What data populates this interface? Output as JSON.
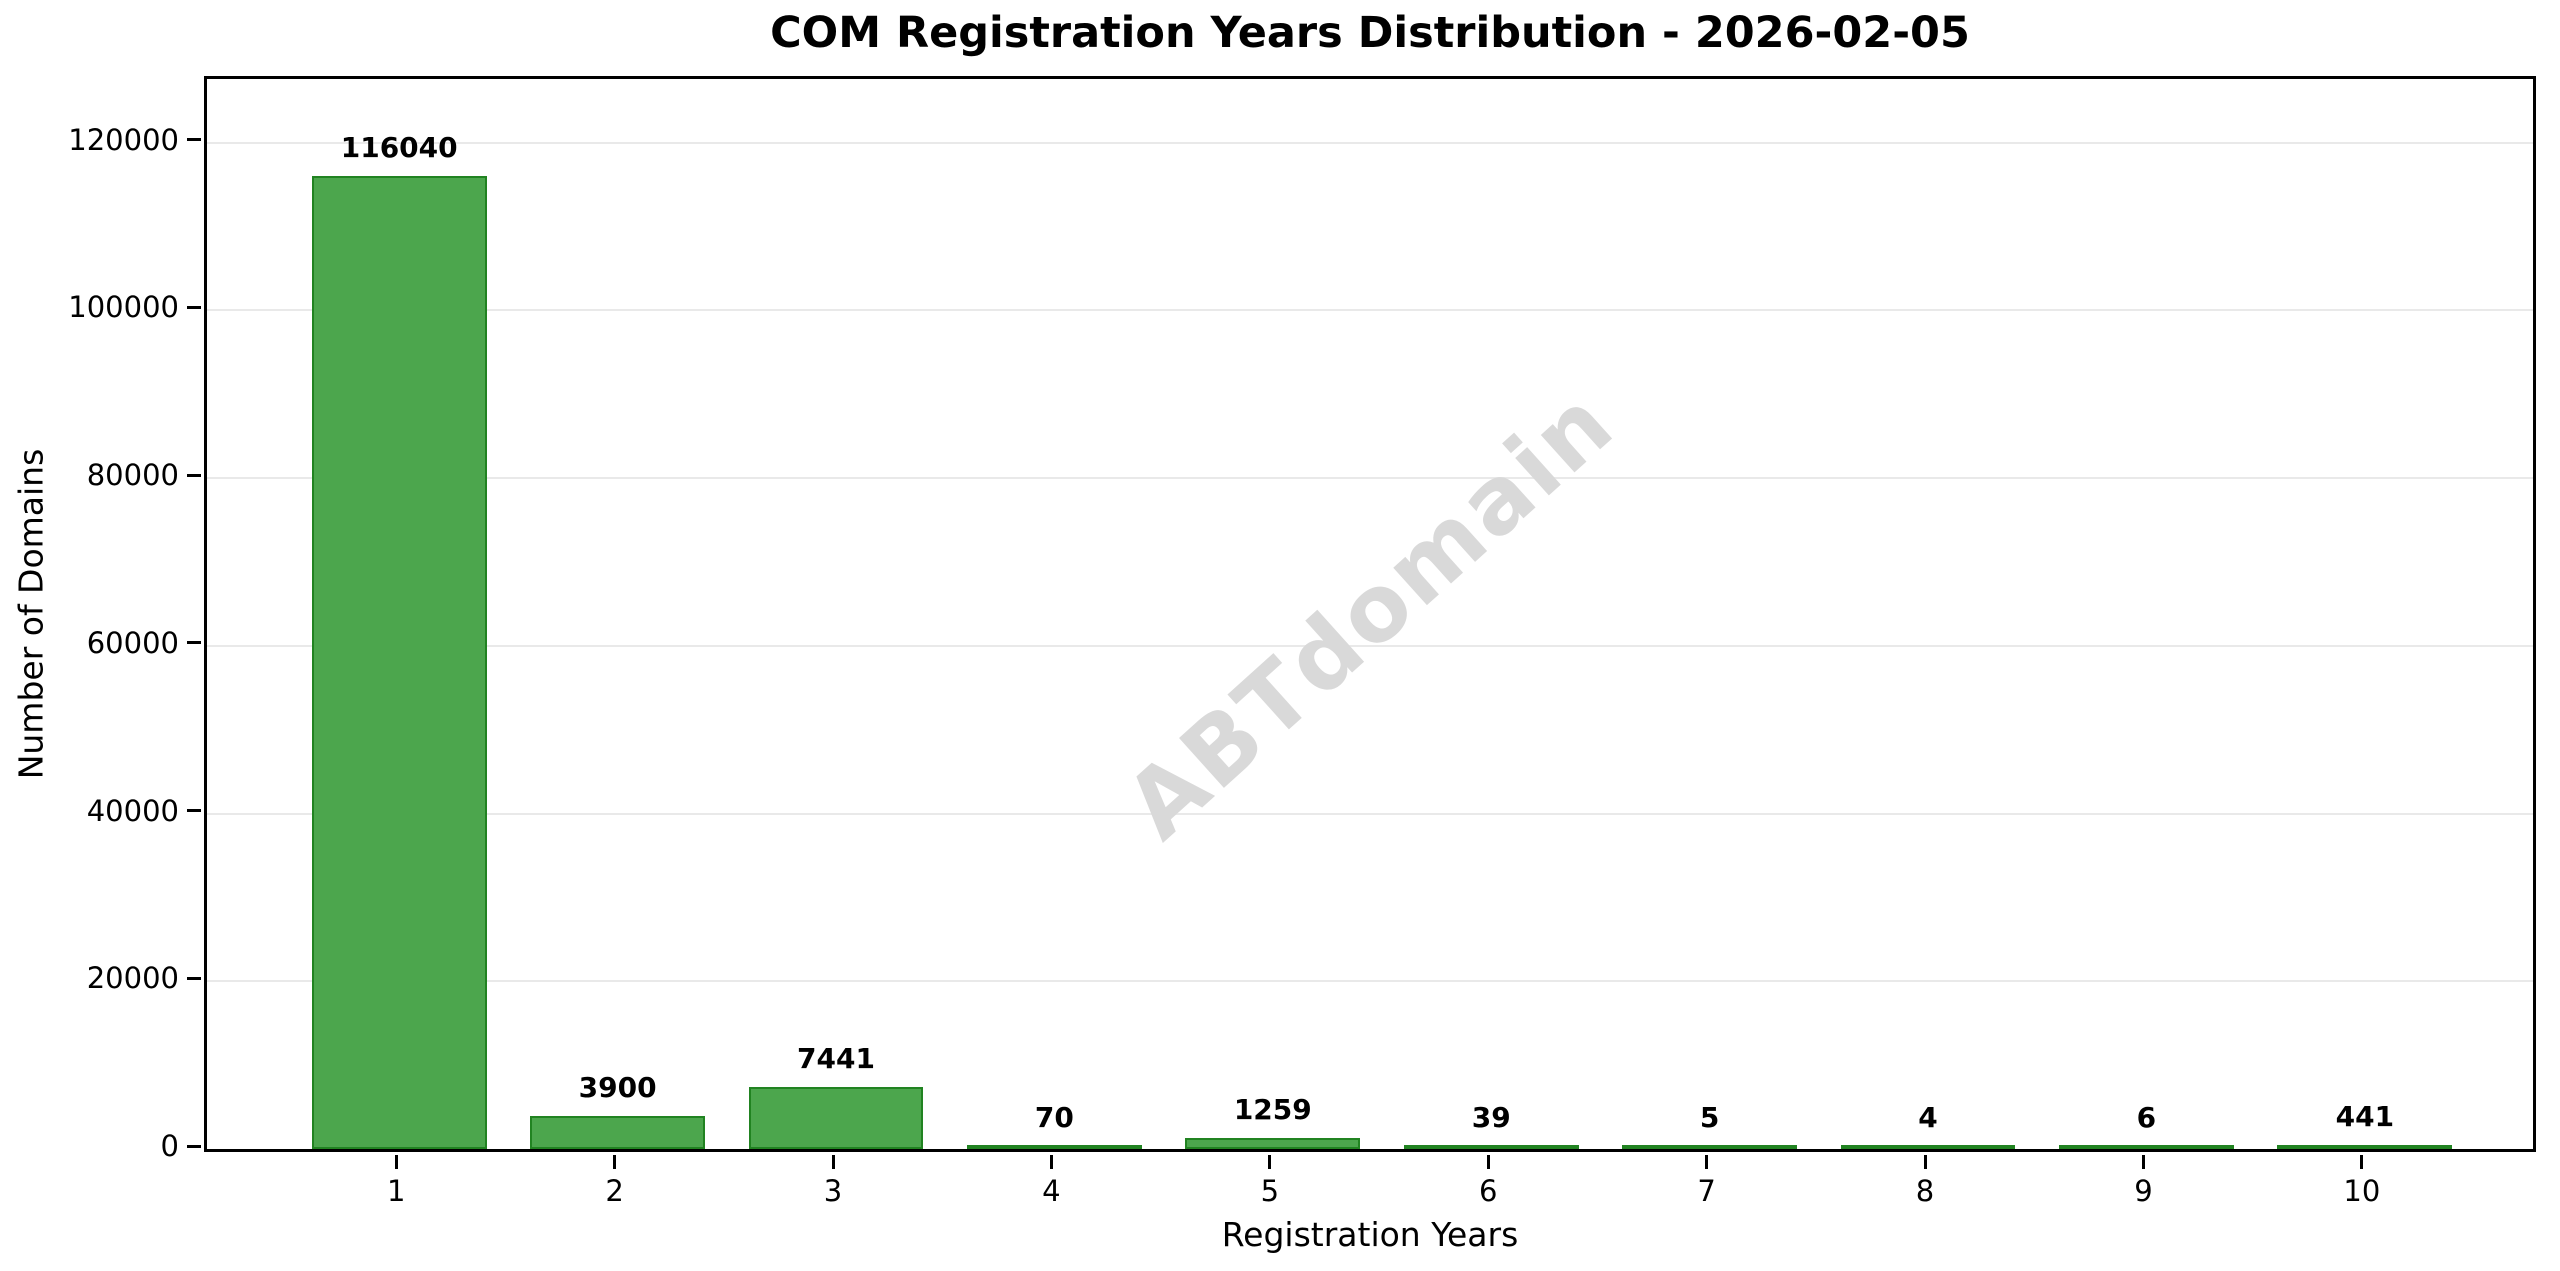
{
  "figure": {
    "title": "COM Registration Years Distribution - 2026-02-05",
    "watermark_text": "ABTdomain"
  },
  "chart_data": {
    "type": "bar",
    "title": "COM Registration Years Distribution - 2026-02-05",
    "xlabel": "Registration Years",
    "ylabel": "Number of Domains",
    "categories": [
      "1",
      "2",
      "3",
      "4",
      "5",
      "6",
      "7",
      "8",
      "9",
      "10"
    ],
    "values": [
      116040,
      3900,
      7441,
      70,
      1259,
      39,
      5,
      4,
      6,
      441
    ],
    "value_labels_shown": true,
    "yticks": [
      0,
      20000,
      40000,
      60000,
      80000,
      100000,
      120000
    ],
    "ylim": [
      0,
      127600
    ],
    "xlim_category_units": [
      -0.88,
      9.77
    ],
    "bar_width_frac": 0.8,
    "grid": "horizontal",
    "legend": "none",
    "watermark": {
      "text": "ABTdomain",
      "rotation_deg": -42
    },
    "colors": {
      "bar_fill": "#4CA64D",
      "bar_edge": "#218321",
      "gridline": "#e9e9e9",
      "spine": "#000000",
      "text": "#000000",
      "watermark": "#d9d9d9",
      "background": "#ffffff"
    }
  }
}
